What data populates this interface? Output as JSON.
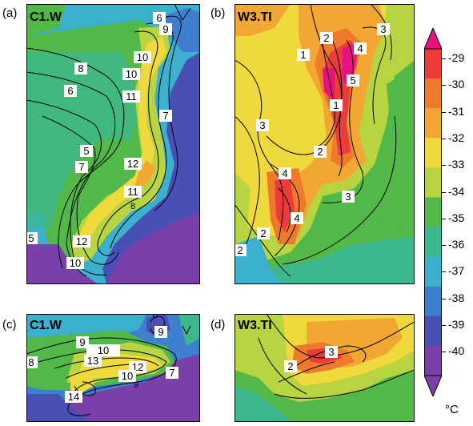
{
  "panels": [
    {
      "letter": "(a)",
      "title": "C1.W",
      "contour_labels": [
        "6",
        "9",
        "8",
        "10",
        "6",
        "10",
        "11",
        "7",
        "5",
        "7",
        "12",
        "11",
        "8",
        "5",
        "12",
        "10"
      ]
    },
    {
      "letter": "(b)",
      "title": "W3.TI",
      "contour_labels": [
        "2",
        "3",
        "1",
        "4",
        "5",
        "1",
        "3",
        "2",
        "4",
        "3",
        "4",
        "2",
        "2"
      ]
    },
    {
      "letter": "(c)",
      "title": "C1.W",
      "contour_labels": [
        "8",
        "9",
        "8",
        "9",
        "10",
        "13",
        "12",
        "10",
        "7",
        "9",
        "14"
      ]
    },
    {
      "letter": "(d)",
      "title": "W3.TI",
      "contour_labels": [
        "3",
        "2"
      ]
    }
  ],
  "colorbar": {
    "ticks": [
      "-29",
      "-30",
      "-31",
      "-32",
      "-33",
      "-34",
      "-35",
      "-36",
      "-37",
      "-38",
      "-39",
      "-40"
    ],
    "colors": [
      "#e8117f",
      "#ec3b3b",
      "#ef7a2c",
      "#f2a733",
      "#f0d93c",
      "#b8d440",
      "#52b948",
      "#3cb88f",
      "#3bb0cf",
      "#3f7fd0",
      "#4a4fb6",
      "#7a3fa8"
    ],
    "unit": "°C"
  }
}
